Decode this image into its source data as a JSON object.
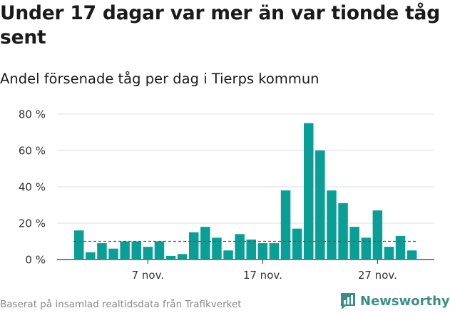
{
  "header": {
    "title": "Under 17 dagar var mer än var tionde tåg sent",
    "subtitle": "Andel försenade tåg per dag i Tierps kommun"
  },
  "footer": {
    "source": "Baserat på insamlad realtidsdata från Trafikverket",
    "brand": "Newsworthy"
  },
  "colors": {
    "bar": "#0a9f96",
    "grid": "#dddddd",
    "reference_line": "#555555",
    "brand": "#3a8f85"
  },
  "chart_data": {
    "type": "bar",
    "title": "Under 17 dagar var mer än var tionde tåg sent",
    "subtitle": "Andel försenade tåg per dag i Tierps kommun",
    "x": [
      "1 nov.",
      "2 nov.",
      "3 nov.",
      "4 nov.",
      "5 nov.",
      "6 nov.",
      "7 nov.",
      "8 nov.",
      "9 nov.",
      "10 nov.",
      "11 nov.",
      "12 nov.",
      "13 nov.",
      "14 nov.",
      "15 nov.",
      "16 nov.",
      "17 nov.",
      "18 nov.",
      "19 nov.",
      "20 nov.",
      "21 nov.",
      "22 nov.",
      "23 nov.",
      "24 nov.",
      "25 nov.",
      "26 nov.",
      "27 nov.",
      "28 nov.",
      "29 nov.",
      "30 nov."
    ],
    "values": [
      16,
      4,
      9,
      6,
      10,
      10,
      7,
      10,
      2,
      3,
      15,
      18,
      12,
      5,
      14,
      11,
      9,
      9,
      38,
      17,
      75,
      60,
      38,
      31,
      18,
      12,
      27,
      7,
      13,
      5
    ],
    "xtick_labels": [
      "7 nov.",
      "17 nov.",
      "27 nov."
    ],
    "ytick_labels": [
      "0 %",
      "20 %",
      "40 %",
      "60 %",
      "80 %"
    ],
    "ylim": [
      0,
      80
    ],
    "reference_line": 10,
    "grid": true,
    "xlabel": "",
    "ylabel": ""
  }
}
